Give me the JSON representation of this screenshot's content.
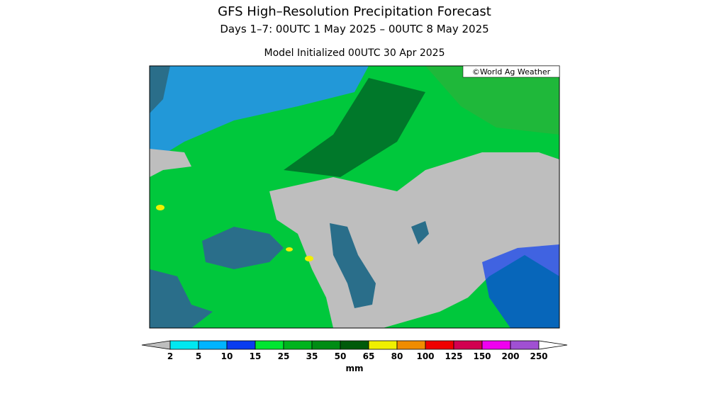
{
  "header": {
    "title": "GFS High–Resolution Precipitation Forecast",
    "subtitle": "Days 1–7: 00UTC 1 May 2025 – 00UTC 8 May 2025",
    "initialized": "Model Initialized 00UTC 30 Apr 2025"
  },
  "map": {
    "credit": "©World Ag Weather"
  },
  "legend": {
    "ticks": [
      2,
      5,
      10,
      15,
      25,
      35,
      50,
      65,
      80,
      100,
      125,
      150,
      200,
      250
    ],
    "colors": [
      "#00e8f0",
      "#00b4ff",
      "#0a3cf0",
      "#00e632",
      "#00b41e",
      "#008c14",
      "#005a0a",
      "#f0f000",
      "#f08c00",
      "#f00000",
      "#d20050",
      "#f000f0",
      "#a050d2"
    ],
    "below_color": "#bebebe",
    "above_color": "#ffffff",
    "unit": "mm"
  }
}
